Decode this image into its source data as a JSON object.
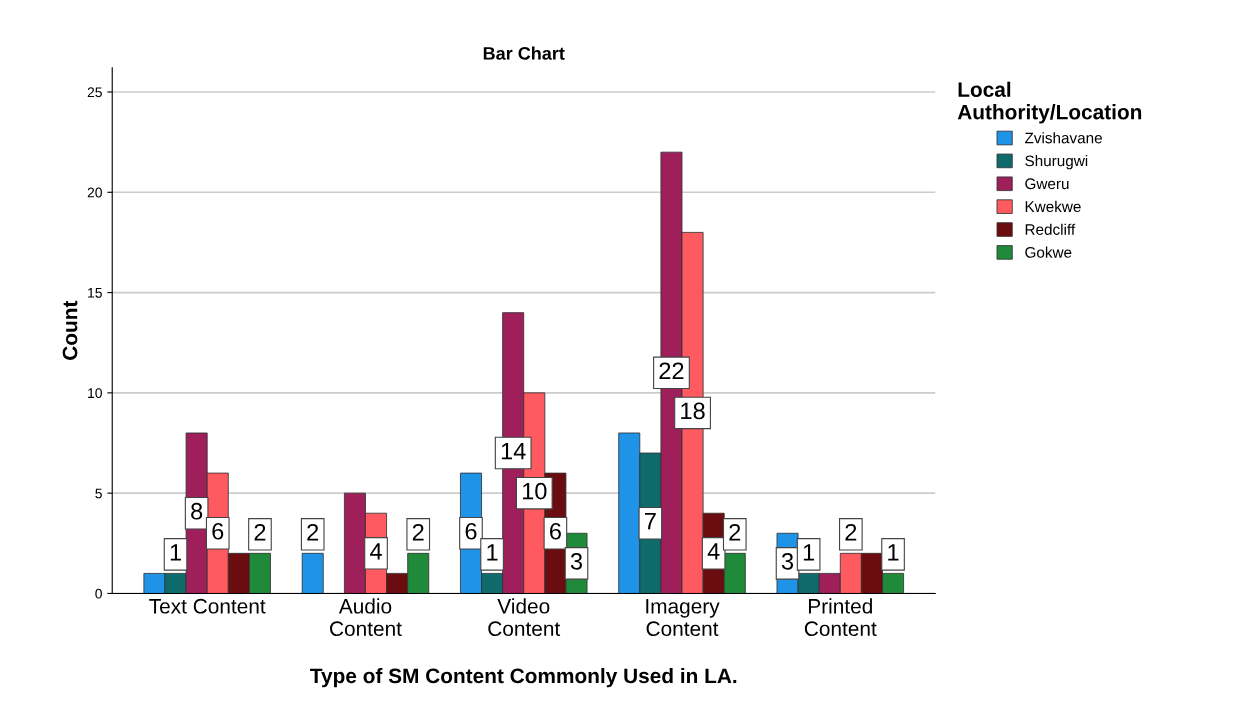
{
  "chart_data": {
    "type": "bar",
    "title": "Bar Chart",
    "xlabel": "Type of SM Content Commonly Used in LA.",
    "ylabel": "Count",
    "legend_title": "Local\nAuthority/Location",
    "legend": "top right",
    "categories": [
      "Text Content",
      "Audio\nContent",
      "Video\nContent",
      "Imagery\nContent",
      "Printed\nContent"
    ],
    "series": [
      {
        "name": "Zvishavane",
        "color": "#1f93e8",
        "values": [
          1,
          2,
          6,
          8,
          3
        ],
        "value_labels": [
          null,
          "2",
          "6",
          null,
          "3"
        ]
      },
      {
        "name": "Shurugwi",
        "color": "#0f6b6b",
        "values": [
          1,
          0,
          1,
          7,
          1
        ],
        "value_labels": [
          "1",
          null,
          "1",
          "7",
          "1"
        ]
      },
      {
        "name": "Gweru",
        "color": "#9e1f5a",
        "values": [
          8,
          5,
          14,
          22,
          1
        ],
        "value_labels": [
          "8",
          null,
          "14",
          "22",
          null
        ]
      },
      {
        "name": "Kwekwe",
        "color": "#ff5a5f",
        "values": [
          6,
          4,
          10,
          18,
          2
        ],
        "value_labels": [
          "6",
          "4",
          "10",
          "18",
          "2"
        ]
      },
      {
        "name": "Redcliff",
        "color": "#6b0c10",
        "values": [
          2,
          1,
          6,
          4,
          2
        ],
        "value_labels": [
          null,
          null,
          "6",
          "4",
          null
        ]
      },
      {
        "name": "Gokwe",
        "color": "#1f8a3a",
        "values": [
          2,
          2,
          3,
          2,
          1
        ],
        "value_labels": [
          "2",
          "2",
          "3",
          "2",
          "1"
        ]
      }
    ],
    "ylim": [
      0,
      26.2
    ],
    "yticks": [
      0,
      5,
      10,
      15,
      20,
      25
    ],
    "grid": "y"
  }
}
